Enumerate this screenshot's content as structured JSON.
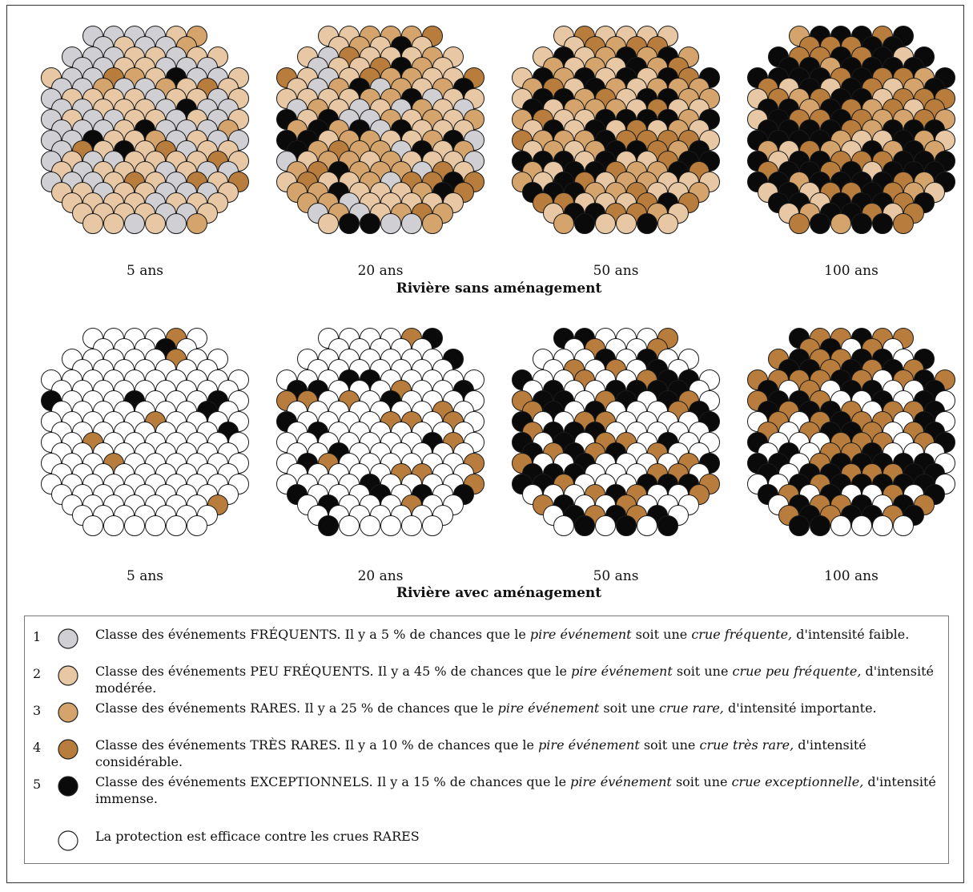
{
  "colors": {
    "class1": "#cfcfd4",
    "class2": "#e8c8a4",
    "class3": "#d4a46c",
    "class4": "#b87d3c",
    "class5": "#0a0a0a",
    "protected": "#ffffff"
  },
  "sections": [
    {
      "title": "Rivière sans aménagement",
      "panels": [
        {
          "label": "5 ans",
          "seed": 11,
          "weights": [
            0.4,
            0.38,
            0.1,
            0.06,
            0.06,
            0
          ]
        },
        {
          "label": "20 ans",
          "seed": 23,
          "weights": [
            0.1,
            0.4,
            0.26,
            0.12,
            0.12,
            0
          ]
        },
        {
          "label": "50 ans",
          "seed": 37,
          "weights": [
            0,
            0.3,
            0.22,
            0.2,
            0.28,
            0
          ]
        },
        {
          "label": "100 ans",
          "seed": 51,
          "weights": [
            0,
            0.14,
            0.14,
            0.22,
            0.5,
            0
          ]
        }
      ]
    },
    {
      "title": "Rivière avec aménagement",
      "panels": [
        {
          "label": "5 ans",
          "seed": 61,
          "weights": [
            0,
            0,
            0,
            0.07,
            0.06,
            0.87
          ]
        },
        {
          "label": "20 ans",
          "seed": 73,
          "weights": [
            0,
            0,
            0,
            0.12,
            0.13,
            0.75
          ]
        },
        {
          "label": "50 ans",
          "seed": 89,
          "weights": [
            0,
            0,
            0,
            0.22,
            0.3,
            0.48
          ]
        },
        {
          "label": "100 ans",
          "seed": 97,
          "weights": [
            0,
            0,
            0,
            0.24,
            0.52,
            0.24
          ]
        }
      ]
    }
  ],
  "legend": [
    {
      "num": "1",
      "color_key": "class1",
      "parts": [
        {
          "t": "Classe des événements FRÉQUENTS. Il y a 5 % de chances que le "
        },
        {
          "t": "pire événement",
          "i": true
        },
        {
          "t": " soit une "
        },
        {
          "t": "crue fréquente,",
          "i": true
        },
        {
          "t": " d'intensité faible."
        }
      ]
    },
    {
      "num": "2",
      "color_key": "class2",
      "parts": [
        {
          "t": "Classe des événements PEU FRÉQUENTS. Il y a 45 % de chances que le "
        },
        {
          "t": "pire événement",
          "i": true
        },
        {
          "t": " soit une "
        },
        {
          "t": "crue peu fréquente,",
          "i": true
        },
        {
          "t": " d'intensité modérée."
        }
      ]
    },
    {
      "num": "3",
      "color_key": "class3",
      "parts": [
        {
          "t": "Classe des événements RARES. Il y a 25 % de chances que le "
        },
        {
          "t": "pire événement",
          "i": true
        },
        {
          "t": " soit une "
        },
        {
          "t": "crue rare,",
          "i": true
        },
        {
          "t": " d'intensité importante."
        }
      ]
    },
    {
      "num": "4",
      "color_key": "class4",
      "parts": [
        {
          "t": "Classe des événements TRÈS RARES. Il y a 10 % de chances que le "
        },
        {
          "t": "pire événement",
          "i": true
        },
        {
          "t": " soit une "
        },
        {
          "t": "crue très rare,",
          "i": true
        },
        {
          "t": " d'intensité considérable."
        }
      ]
    },
    {
      "num": "5",
      "color_key": "class5",
      "parts": [
        {
          "t": "Classe des événements EXCEPTIONNELS. Il y a 15 % de chances que le "
        },
        {
          "t": "pire événement",
          "i": true
        },
        {
          "t": " soit une "
        },
        {
          "t": "crue exceptionnelle,",
          "i": true
        },
        {
          "t": " d'intensité immense."
        }
      ]
    },
    {
      "num": "",
      "color_key": "protected",
      "parts": [
        {
          "t": "La protection est efficace contre les crues RARES"
        }
      ]
    }
  ]
}
